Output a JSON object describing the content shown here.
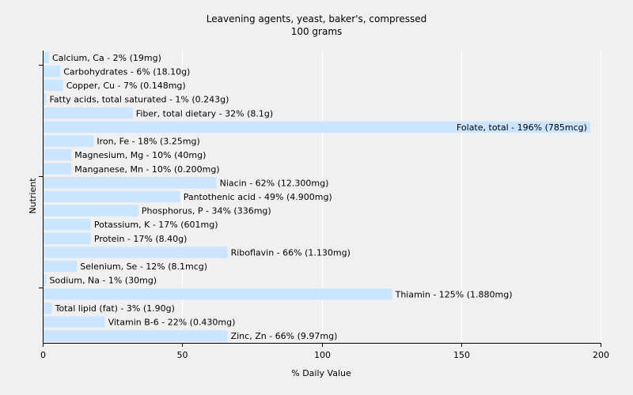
{
  "chart_data": {
    "type": "bar",
    "orientation": "horizontal",
    "title": "Leavening agents, yeast, baker's, compressed",
    "subtitle": "100 grams",
    "xlabel": "% Daily Value",
    "ylabel": "Nutrient",
    "xlim": [
      0,
      200
    ],
    "x_ticks": [
      0,
      50,
      100,
      150,
      200
    ],
    "grid": true,
    "bar_color": "#cce5ff",
    "grid_color": "#ffffff",
    "background_color": "#f0f0f0",
    "categories": [
      "Calcium, Ca",
      "Carbohydrates",
      "Copper, Cu",
      "Fatty acids, total saturated",
      "Fiber, total dietary",
      "Folate, total",
      "Iron, Fe",
      "Magnesium, Mg",
      "Manganese, Mn",
      "Niacin",
      "Pantothenic acid",
      "Phosphorus, P",
      "Potassium, K",
      "Protein",
      "Riboflavin",
      "Selenium, Se",
      "Sodium, Na",
      "Thiamin",
      "Total lipid (fat)",
      "Vitamin B-6",
      "Zinc, Zn"
    ],
    "values": [
      2,
      6,
      7,
      1,
      32,
      196,
      18,
      10,
      10,
      62,
      49,
      34,
      17,
      17,
      66,
      12,
      1,
      125,
      3,
      22,
      66
    ],
    "labels": [
      "Calcium, Ca - 2% (19mg)",
      "Carbohydrates - 6% (18.10g)",
      "Copper, Cu - 7% (0.148mg)",
      "Fatty acids, total saturated - 1% (0.243g)",
      "Fiber, total dietary - 32% (8.1g)",
      "Folate, total - 196% (785mcg)",
      "Iron, Fe - 18% (3.25mg)",
      "Magnesium, Mg - 10% (40mg)",
      "Manganese, Mn - 10% (0.200mg)",
      "Niacin - 62% (12.300mg)",
      "Pantothenic acid - 49% (4.900mg)",
      "Phosphorus, P - 34% (336mg)",
      "Potassium, K - 17% (601mg)",
      "Protein - 17% (8.40g)",
      "Riboflavin - 66% (1.130mg)",
      "Selenium, Se - 12% (8.1mcg)",
      "Sodium, Na - 1% (30mg)",
      "Thiamin - 125% (1.880mg)",
      "Total lipid (fat) - 3% (1.90g)",
      "Vitamin B-6 - 22% (0.430mg)",
      "Zinc, Zn - 66% (9.97mg)"
    ]
  }
}
